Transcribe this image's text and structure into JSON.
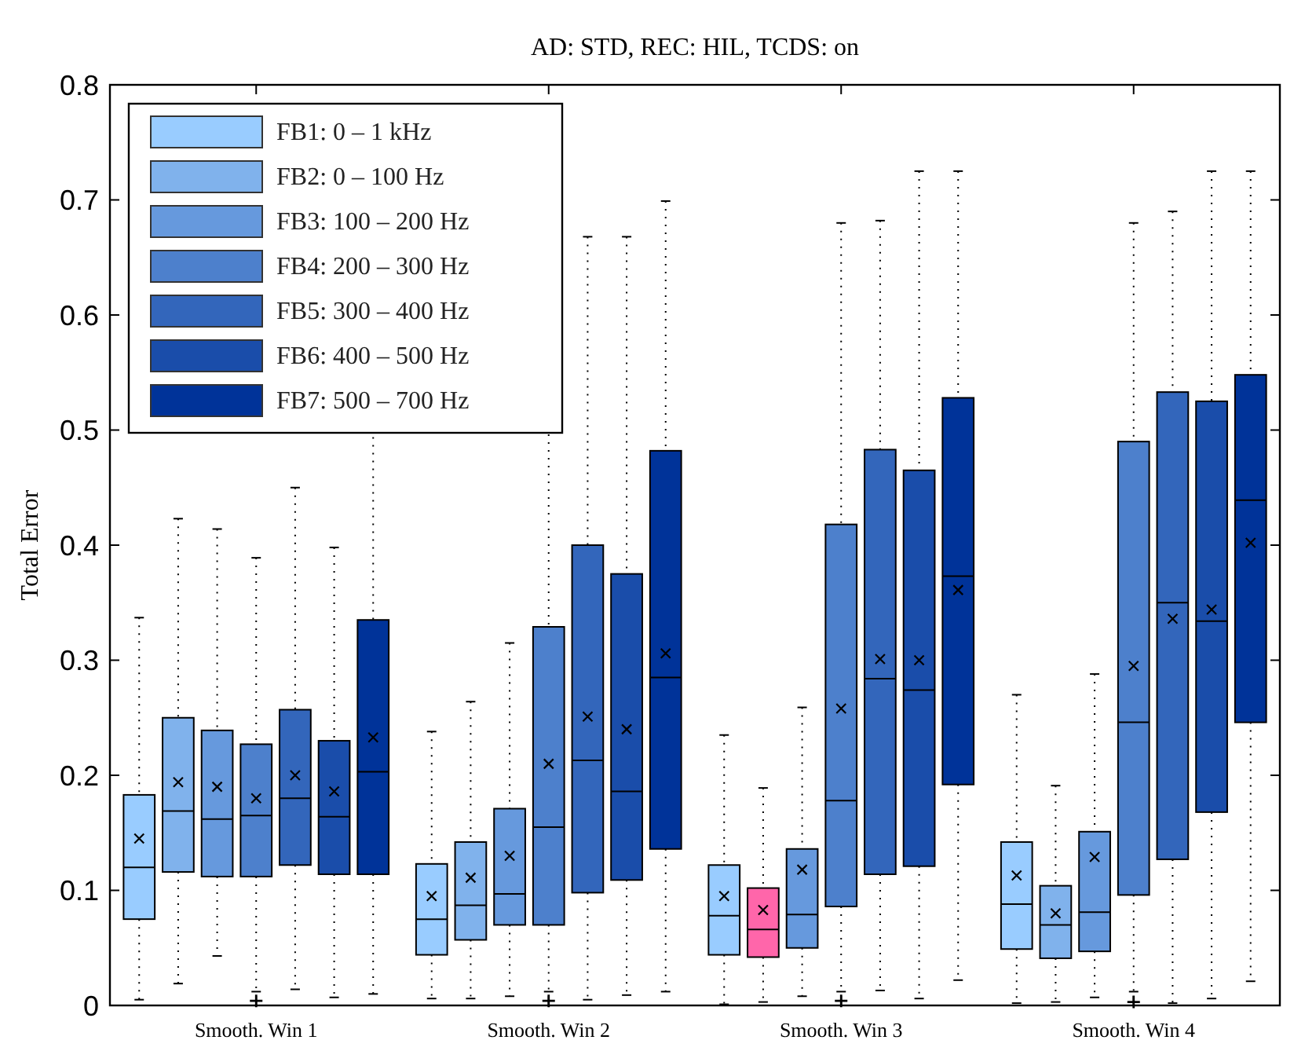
{
  "chart_data": {
    "type": "box",
    "title": "AD: STD, REC: HIL, TCDS: on",
    "ylabel": "Total Error",
    "categories": [
      "Smooth. Win 1",
      "Smooth. Win 2",
      "Smooth. Win 3",
      "Smooth. Win 4"
    ],
    "ylim": [
      0,
      0.8
    ],
    "yticks": [
      0,
      0.1,
      0.2,
      0.3,
      0.4,
      0.5,
      0.6,
      0.7,
      0.8
    ],
    "grid": false,
    "legend": "top left",
    "marker": "cross",
    "series": [
      {
        "name": "FB1: 0 – 1 kHz",
        "color": "#99ccff",
        "boxes": [
          {
            "low": 0.005,
            "q1": 0.075,
            "median": 0.12,
            "q3": 0.183,
            "high": 0.337,
            "mean": 0.145
          },
          {
            "low": 0.006,
            "q1": 0.044,
            "median": 0.075,
            "q3": 0.123,
            "high": 0.238,
            "mean": 0.095
          },
          {
            "low": 0.001,
            "q1": 0.044,
            "median": 0.078,
            "q3": 0.122,
            "high": 0.235,
            "mean": 0.095
          },
          {
            "low": 0.002,
            "q1": 0.049,
            "median": 0.088,
            "q3": 0.142,
            "high": 0.27,
            "mean": 0.113
          }
        ]
      },
      {
        "name": "FB2: 0 – 100 Hz",
        "color": "#80b2ec",
        "colors": [
          "#80b2ec",
          "#80b2ec",
          "#ff66aa",
          "#80b2ec"
        ],
        "boxes": [
          {
            "low": 0.019,
            "q1": 0.116,
            "median": 0.169,
            "q3": 0.25,
            "high": 0.423,
            "mean": 0.194
          },
          {
            "low": 0.006,
            "q1": 0.057,
            "median": 0.087,
            "q3": 0.142,
            "high": 0.264,
            "mean": 0.111
          },
          {
            "low": 0.003,
            "q1": 0.042,
            "median": 0.066,
            "q3": 0.102,
            "high": 0.189,
            "mean": 0.083
          },
          {
            "low": 0.003,
            "q1": 0.041,
            "median": 0.07,
            "q3": 0.104,
            "high": 0.191,
            "mean": 0.08
          }
        ]
      },
      {
        "name": "FB3: 100 – 200 Hz",
        "color": "#6699dd",
        "boxes": [
          {
            "low": 0.043,
            "q1": 0.112,
            "median": 0.162,
            "q3": 0.239,
            "high": 0.414,
            "mean": 0.19
          },
          {
            "low": 0.008,
            "q1": 0.07,
            "median": 0.097,
            "q3": 0.171,
            "high": 0.315,
            "mean": 0.13
          },
          {
            "low": 0.008,
            "q1": 0.05,
            "median": 0.079,
            "q3": 0.136,
            "high": 0.259,
            "mean": 0.118
          },
          {
            "low": 0.007,
            "q1": 0.047,
            "median": 0.081,
            "q3": 0.151,
            "high": 0.288,
            "mean": 0.129
          }
        ]
      },
      {
        "name": "FB4: 200 – 300 Hz",
        "color": "#4d80cc",
        "boxes": [
          {
            "low": 0.012,
            "q1": 0.112,
            "median": 0.165,
            "q3": 0.227,
            "high": 0.389,
            "mean": 0.18,
            "outliers": [
              0.004
            ]
          },
          {
            "low": 0.012,
            "q1": 0.07,
            "median": 0.155,
            "q3": 0.329,
            "high": 0.66,
            "mean": 0.21,
            "outliers": [
              0.004
            ]
          },
          {
            "low": 0.012,
            "q1": 0.086,
            "median": 0.178,
            "q3": 0.418,
            "high": 0.68,
            "mean": 0.258,
            "outliers": [
              0.004
            ]
          },
          {
            "low": 0.012,
            "q1": 0.096,
            "median": 0.246,
            "q3": 0.49,
            "high": 0.68,
            "mean": 0.295,
            "outliers": [
              0.003
            ]
          }
        ]
      },
      {
        "name": "FB5: 300 – 400 Hz",
        "color": "#3366bb",
        "boxes": [
          {
            "low": 0.014,
            "q1": 0.122,
            "median": 0.18,
            "q3": 0.257,
            "high": 0.45,
            "mean": 0.2
          },
          {
            "low": 0.005,
            "q1": 0.098,
            "median": 0.213,
            "q3": 0.4,
            "high": 0.668,
            "mean": 0.251
          },
          {
            "low": 0.013,
            "q1": 0.114,
            "median": 0.284,
            "q3": 0.483,
            "high": 0.682,
            "mean": 0.301
          },
          {
            "low": 0.002,
            "q1": 0.127,
            "median": 0.35,
            "q3": 0.533,
            "high": 0.69,
            "mean": 0.336
          }
        ]
      },
      {
        "name": "FB6: 400 – 500 Hz",
        "color": "#1a4daa",
        "boxes": [
          {
            "low": 0.007,
            "q1": 0.114,
            "median": 0.164,
            "q3": 0.23,
            "high": 0.398,
            "mean": 0.186
          },
          {
            "low": 0.009,
            "q1": 0.109,
            "median": 0.186,
            "q3": 0.375,
            "high": 0.668,
            "mean": 0.24
          },
          {
            "low": 0.006,
            "q1": 0.121,
            "median": 0.274,
            "q3": 0.465,
            "high": 0.725,
            "mean": 0.3
          },
          {
            "low": 0.006,
            "q1": 0.168,
            "median": 0.334,
            "q3": 0.525,
            "high": 0.725,
            "mean": 0.344
          }
        ]
      },
      {
        "name": "FB7: 500 – 700 Hz",
        "color": "#003399",
        "boxes": [
          {
            "low": 0.01,
            "q1": 0.114,
            "median": 0.203,
            "q3": 0.335,
            "high": 0.76,
            "mean": 0.233
          },
          {
            "low": 0.012,
            "q1": 0.136,
            "median": 0.285,
            "q3": 0.482,
            "high": 0.699,
            "mean": 0.306
          },
          {
            "low": 0.022,
            "q1": 0.192,
            "median": 0.373,
            "q3": 0.528,
            "high": 0.725,
            "mean": 0.361
          },
          {
            "low": 0.021,
            "q1": 0.246,
            "median": 0.439,
            "q3": 0.548,
            "high": 0.725,
            "mean": 0.402
          }
        ]
      }
    ]
  }
}
